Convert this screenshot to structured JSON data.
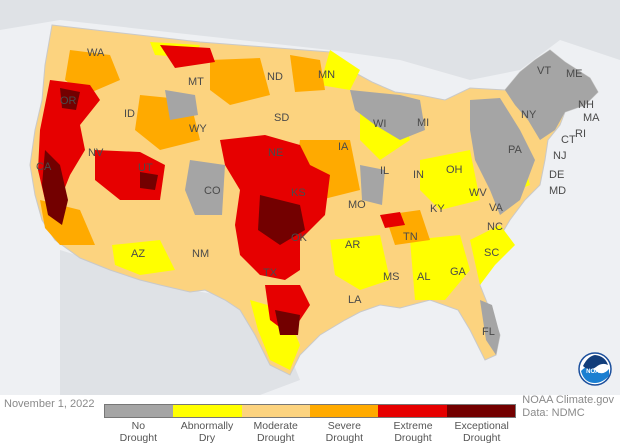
{
  "map": {
    "date": "November 1, 2022",
    "credit_line1": "NOAA Climate.gov",
    "credit_line2": "Data: NDMC",
    "logo_text": "NOAA"
  },
  "colors": {
    "no_drought": "#a5a5a5",
    "abnormally_dry": "#ffff00",
    "moderate": "#fcd37f",
    "severe": "#ffaa00",
    "extreme": "#e60000",
    "exceptional": "#730000",
    "background": "#eef0f3"
  },
  "legend": [
    {
      "line1": "No",
      "line2": "Drought",
      "color": "#a5a5a5"
    },
    {
      "line1": "Abnormally",
      "line2": "Dry",
      "color": "#ffff00"
    },
    {
      "line1": "Moderate",
      "line2": "Drought",
      "color": "#fcd37f"
    },
    {
      "line1": "Severe",
      "line2": "Drought",
      "color": "#ffaa00"
    },
    {
      "line1": "Extreme",
      "line2": "Drought",
      "color": "#e60000"
    },
    {
      "line1": "Exceptional",
      "line2": "Drought",
      "color": "#730000"
    }
  ],
  "states": {
    "WA": "WA",
    "OR": "OR",
    "CA": "CA",
    "ID": "ID",
    "NV": "NV",
    "MT": "MT",
    "WY": "WY",
    "UT": "UT",
    "CO": "CO",
    "AZ": "AZ",
    "NM": "NM",
    "ND": "ND",
    "SD": "SD",
    "NE": "NE",
    "KS": "KS",
    "OK": "OK",
    "TX": "TX",
    "MN": "MN",
    "IA": "IA",
    "MO": "MO",
    "AR": "AR",
    "LA": "LA",
    "WI": "WI",
    "IL": "IL",
    "MS": "MS",
    "MI": "MI",
    "IN": "IN",
    "KY": "KY",
    "TN": "TN",
    "AL": "AL",
    "OH": "OH",
    "GA": "GA",
    "FL": "FL",
    "SC": "SC",
    "NC": "NC",
    "VA": "VA",
    "WV": "WV",
    "PA": "PA",
    "NY": "NY",
    "MD": "MD",
    "DE": "DE",
    "NJ": "NJ",
    "CT": "CT",
    "RI": "RI",
    "MA": "MA",
    "NH": "NH",
    "VT": "VT",
    "ME": "ME"
  }
}
